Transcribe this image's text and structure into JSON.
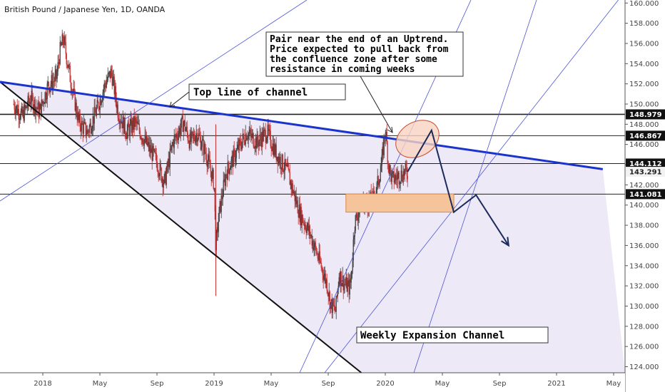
{
  "symbol_title": "British Pound / Japanese Yen, 1D, OANDA",
  "colors": {
    "bull": "#3b3b3b",
    "bear": "#c62828",
    "channel_fill": "#ede9f7",
    "blue_line": "#1a33cc",
    "thin_blue": "#4b55d6",
    "zone": "#f5c49a",
    "ellipse": "#f7d3c2"
  },
  "annotations": {
    "top_line": "Top line of channel",
    "pair_note": [
      "Pair near the end of an Uptrend.",
      "Price expected to pull back from",
      "the confluence zone after some",
      "resistance in coming weeks"
    ],
    "weekly": "Weekly Expansion Channel"
  },
  "chart_data": {
    "type": "candlestick",
    "title": "British Pound / Japanese Yen, 1D, OANDA",
    "x_ticks": [
      "2018",
      "May",
      "Sep",
      "2019",
      "May",
      "Sep",
      "2020",
      "May",
      "Sep",
      "2021",
      "May"
    ],
    "y_ticks": [
      "124.000",
      "126.000",
      "128.000",
      "130.000",
      "132.000",
      "134.000",
      "136.000",
      "138.000",
      "140.000",
      "142.000",
      "144.000",
      "146.000",
      "148.000",
      "150.000",
      "152.000",
      "154.000",
      "156.000",
      "158.000",
      "160.000"
    ],
    "ylim": [
      123.4,
      160.3
    ],
    "price_levels": [
      {
        "label": "148.979",
        "value": 148.979
      },
      {
        "label": "146.867",
        "value": 146.867
      },
      {
        "label": "144.112",
        "value": 144.112
      },
      {
        "label": "143.291",
        "value": 143.291
      },
      {
        "label": "141.081",
        "value": 141.081
      }
    ],
    "price_path": [
      [
        2017.83,
        150.0
      ],
      [
        2017.88,
        148.8
      ],
      [
        2017.93,
        150.6
      ],
      [
        2017.98,
        149.2
      ],
      [
        2018.03,
        151.8
      ],
      [
        2018.08,
        152.6
      ],
      [
        2018.1,
        155.2
      ],
      [
        2018.12,
        156.5
      ],
      [
        2018.16,
        152.6
      ],
      [
        2018.21,
        148.2
      ],
      [
        2018.26,
        147.2
      ],
      [
        2018.31,
        149.2
      ],
      [
        2018.36,
        151.8
      ],
      [
        2018.4,
        153.2
      ],
      [
        2018.44,
        149.2
      ],
      [
        2018.49,
        147.2
      ],
      [
        2018.54,
        148.2
      ],
      [
        2018.6,
        146.2
      ],
      [
        2018.66,
        144.5
      ],
      [
        2018.71,
        142.2
      ],
      [
        2018.76,
        146.2
      ],
      [
        2018.82,
        148.2
      ],
      [
        2018.86,
        146.2
      ],
      [
        2018.9,
        147.2
      ],
      [
        2018.95,
        145.2
      ],
      [
        2019.0,
        142.2
      ],
      [
        2019.01,
        135.8
      ],
      [
        2019.03,
        139.2
      ],
      [
        2019.07,
        143.2
      ],
      [
        2019.13,
        145.2
      ],
      [
        2019.19,
        147.2
      ],
      [
        2019.25,
        146.2
      ],
      [
        2019.31,
        147.2
      ],
      [
        2019.36,
        145.2
      ],
      [
        2019.43,
        143.2
      ],
      [
        2019.5,
        139.2
      ],
      [
        2019.56,
        137.2
      ],
      [
        2019.62,
        134.2
      ],
      [
        2019.66,
        132.2
      ],
      [
        2019.68,
        130.2
      ],
      [
        2019.71,
        129.5
      ],
      [
        2019.73,
        133.2
      ],
      [
        2019.76,
        132.2
      ],
      [
        2019.79,
        131.8
      ],
      [
        2019.8,
        132.5
      ],
      [
        2019.82,
        138.2
      ],
      [
        2019.86,
        140.2
      ],
      [
        2019.9,
        140.2
      ],
      [
        2019.94,
        140.8
      ],
      [
        2019.98,
        144.2
      ],
      [
        2020.0,
        147.6
      ],
      [
        2020.02,
        143.8
      ],
      [
        2020.04,
        142.5
      ],
      [
        2020.07,
        142.8
      ],
      [
        2020.11,
        143.2
      ],
      [
        2020.13,
        143.291
      ]
    ],
    "series": [
      {
        "role": "channel_bottom",
        "points": [
          [
            2017.75,
            152.2
          ],
          [
            2019.86,
            123.4
          ]
        ]
      },
      {
        "role": "channel_top",
        "points": [
          [
            2017.75,
            152.2
          ],
          [
            2021.27,
            143.55
          ]
        ]
      }
    ],
    "projection": [
      [
        2020.13,
        143.3
      ],
      [
        2020.27,
        147.4
      ],
      [
        2020.4,
        139.3
      ],
      [
        2020.53,
        141.0
      ],
      [
        2020.72,
        136.0
      ]
    ],
    "zone": {
      "x": [
        2019.77,
        2020.4
      ],
      "y": [
        139.3,
        141.1
      ]
    }
  }
}
